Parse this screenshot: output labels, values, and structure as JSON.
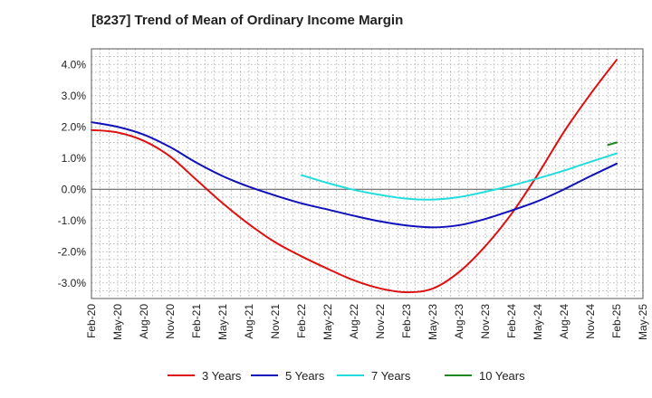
{
  "chart_data": {
    "type": "line",
    "title": "[8237]  Trend of Mean of Ordinary Income Margin",
    "xlabel": "",
    "ylabel": "",
    "x_ticks": [
      "Feb-20",
      "May-20",
      "Aug-20",
      "Nov-20",
      "Feb-21",
      "May-21",
      "Aug-21",
      "Nov-21",
      "Feb-22",
      "May-22",
      "Aug-22",
      "Nov-22",
      "Feb-23",
      "May-23",
      "Aug-23",
      "Nov-23",
      "Feb-24",
      "May-24",
      "Aug-24",
      "Nov-24",
      "Feb-25",
      "May-25"
    ],
    "y_ticks": [
      "-3.0%",
      "-2.0%",
      "-1.0%",
      "0.0%",
      "1.0%",
      "2.0%",
      "3.0%",
      "4.0%"
    ],
    "y_tick_values": [
      -3,
      -2,
      -1,
      0,
      1,
      2,
      3,
      4
    ],
    "ylim": [
      -3.5,
      4.5
    ],
    "x_range": [
      "Feb-20",
      "May-25"
    ],
    "grid": true,
    "legend_position": "bottom",
    "series": [
      {
        "name": "3 Years",
        "color": "#dd1111",
        "points": [
          [
            "Feb-20",
            1.9
          ],
          [
            "May-20",
            1.82
          ],
          [
            "Aug-20",
            1.55
          ],
          [
            "Nov-20",
            1.05
          ],
          [
            "Feb-21",
            0.3
          ],
          [
            "May-21",
            -0.45
          ],
          [
            "Aug-21",
            -1.12
          ],
          [
            "Nov-21",
            -1.7
          ],
          [
            "Feb-22",
            -2.15
          ],
          [
            "May-22",
            -2.55
          ],
          [
            "Aug-22",
            -2.92
          ],
          [
            "Nov-22",
            -3.18
          ],
          [
            "Feb-23",
            -3.3
          ],
          [
            "May-23",
            -3.18
          ],
          [
            "Aug-23",
            -2.65
          ],
          [
            "Nov-23",
            -1.82
          ],
          [
            "Feb-24",
            -0.78
          ],
          [
            "May-24",
            0.48
          ],
          [
            "Aug-24",
            1.85
          ],
          [
            "Nov-24",
            3.05
          ],
          [
            "Feb-25",
            4.15
          ]
        ]
      },
      {
        "name": "5 Years",
        "color": "#1111bb",
        "points": [
          [
            "Feb-20",
            2.15
          ],
          [
            "May-20",
            2.0
          ],
          [
            "Aug-20",
            1.75
          ],
          [
            "Nov-20",
            1.35
          ],
          [
            "Feb-21",
            0.85
          ],
          [
            "May-21",
            0.42
          ],
          [
            "Aug-21",
            0.08
          ],
          [
            "Nov-21",
            -0.2
          ],
          [
            "Feb-22",
            -0.45
          ],
          [
            "May-22",
            -0.65
          ],
          [
            "Aug-22",
            -0.85
          ],
          [
            "Nov-22",
            -1.03
          ],
          [
            "Feb-23",
            -1.16
          ],
          [
            "May-23",
            -1.22
          ],
          [
            "Aug-23",
            -1.15
          ],
          [
            "Nov-23",
            -0.95
          ],
          [
            "Feb-24",
            -0.68
          ],
          [
            "May-24",
            -0.38
          ],
          [
            "Aug-24",
            0.0
          ],
          [
            "Nov-24",
            0.42
          ],
          [
            "Feb-25",
            0.82
          ]
        ]
      },
      {
        "name": "7 Years",
        "color": "#22dddd",
        "points": [
          [
            "Feb-22",
            0.45
          ],
          [
            "May-22",
            0.2
          ],
          [
            "Aug-22",
            -0.02
          ],
          [
            "Nov-22",
            -0.18
          ],
          [
            "Feb-23",
            -0.3
          ],
          [
            "May-23",
            -0.33
          ],
          [
            "Aug-23",
            -0.25
          ],
          [
            "Nov-23",
            -0.08
          ],
          [
            "Feb-24",
            0.12
          ],
          [
            "May-24",
            0.35
          ],
          [
            "Aug-24",
            0.6
          ],
          [
            "Nov-24",
            0.88
          ],
          [
            "Feb-25",
            1.15
          ]
        ]
      },
      {
        "name": "10 Years",
        "color": "#228822",
        "points": [
          [
            "Jan-25",
            1.42
          ],
          [
            "Feb-25",
            1.5
          ]
        ]
      }
    ]
  }
}
